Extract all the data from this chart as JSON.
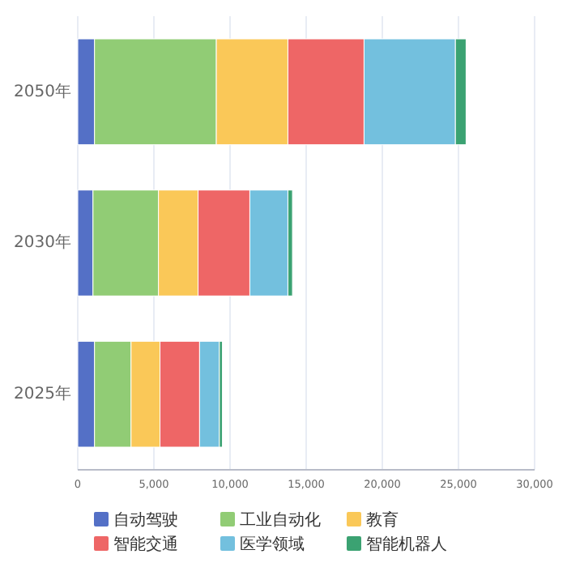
{
  "chart_data": {
    "type": "bar",
    "orientation": "horizontal",
    "stacked": true,
    "categories": [
      "2050年",
      "2030年",
      "2025年"
    ],
    "series": [
      {
        "name": "自动驾驶",
        "color": "#5470c6",
        "values": [
          1100,
          1000,
          1100
        ]
      },
      {
        "name": "工业自动化",
        "color": "#91cc75",
        "values": [
          8000,
          4300,
          2400
        ]
      },
      {
        "name": "教育",
        "color": "#fac858",
        "values": [
          4700,
          2600,
          1900
        ]
      },
      {
        "name": "智能交通",
        "color": "#ee6666",
        "values": [
          5000,
          3400,
          2600
        ]
      },
      {
        "name": "医学领域",
        "color": "#73c0de",
        "values": [
          6000,
          2500,
          1300
        ]
      },
      {
        "name": "智能机器人",
        "color": "#3ba272",
        "values": [
          700,
          300,
          200
        ]
      }
    ],
    "xlim": [
      0,
      30000
    ],
    "xticks": [
      {
        "value": 0,
        "label": "0"
      },
      {
        "value": 5000,
        "label": "5,000"
      },
      {
        "value": 10000,
        "label": "10,000"
      },
      {
        "value": 15000,
        "label": "15,000"
      },
      {
        "value": 20000,
        "label": "20,000"
      },
      {
        "value": 25000,
        "label": "25,000"
      },
      {
        "value": 30000,
        "label": "30,000"
      }
    ],
    "grid": "x",
    "legend": "bottom"
  }
}
